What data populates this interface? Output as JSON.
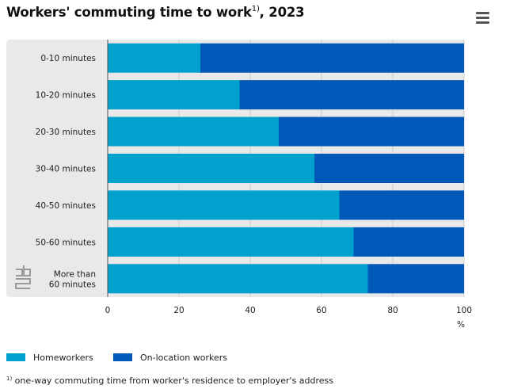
{
  "title": {
    "text": "Workers' commuting time to work",
    "note_mark": "1)",
    "suffix": ", 2023"
  },
  "menu_icon": "hamburger-menu-icon",
  "logo_text": "cbs",
  "colors": {
    "homeworkers": "#00a1cd",
    "on_location": "#0058b8",
    "plot_background": "#e9e9e9",
    "grid": "#cccccc"
  },
  "chart_data": {
    "type": "bar",
    "orientation": "horizontal",
    "stacked": true,
    "title": "Workers' commuting time to work, 2023",
    "categories": [
      "0-10 minutes",
      "10-20 minutes",
      "20-30 minutes",
      "30-40 minutes",
      "40-50 minutes",
      "50-60 minutes",
      "More than 60 minutes"
    ],
    "category_lines": [
      [
        "0-10 minutes"
      ],
      [
        "10-20 minutes"
      ],
      [
        "20-30 minutes"
      ],
      [
        "30-40 minutes"
      ],
      [
        "40-50 minutes"
      ],
      [
        "50-60 minutes"
      ],
      [
        "More than",
        "60 minutes"
      ]
    ],
    "series": [
      {
        "name": "Homeworkers",
        "values": [
          26,
          37,
          48,
          58,
          65,
          69,
          73
        ]
      },
      {
        "name": "On-location workers",
        "values": [
          74,
          63,
          52,
          42,
          35,
          31,
          27
        ]
      }
    ],
    "xlim": [
      0,
      100
    ],
    "xticks": [
      0,
      20,
      40,
      60,
      80,
      100
    ],
    "xlabel": "%",
    "grid": true,
    "legend_position": "bottom-left"
  },
  "legend": [
    {
      "label": "Homeworkers"
    },
    {
      "label": "On-location workers"
    }
  ],
  "footnote": {
    "mark": "1)",
    "text": " one-way commuting time from worker's residence to employer's address"
  }
}
